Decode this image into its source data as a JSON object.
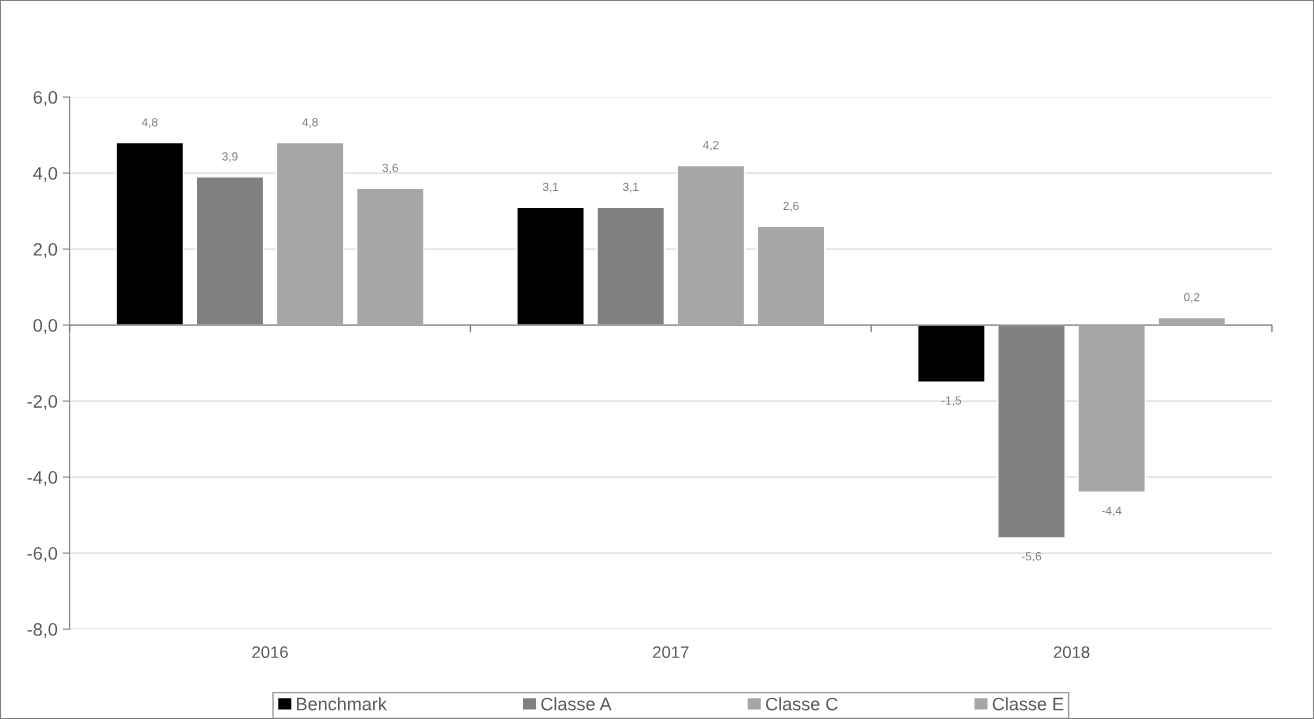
{
  "chart_data": {
    "type": "bar",
    "categories": [
      "2016",
      "2017",
      "2018"
    ],
    "series": [
      {
        "name": "Benchmark",
        "color": "#000000",
        "values": [
          4.8,
          3.1,
          -1.5
        ],
        "value_labels": [
          "4,8",
          "3,1",
          "-1,5"
        ]
      },
      {
        "name": "Classe A",
        "color": "#808080",
        "values": [
          3.9,
          3.1,
          -5.6
        ],
        "value_labels": [
          "3,9",
          "3,1",
          "-5,6"
        ]
      },
      {
        "name": "Classe C",
        "color": "#a6a6a6",
        "values": [
          4.8,
          4.2,
          -4.4
        ],
        "value_labels": [
          "4,8",
          "4,2",
          "-4,4"
        ]
      },
      {
        "name": "Classe E",
        "color": "#a6a6a6",
        "values": [
          3.6,
          2.6,
          0.2
        ],
        "value_labels": [
          "3,6",
          "2,6",
          "0,2"
        ]
      }
    ],
    "ylim": [
      -8,
      6
    ],
    "yticks": [
      {
        "value": -8,
        "label": "-8,0"
      },
      {
        "value": -6,
        "label": "-6,0"
      },
      {
        "value": -4,
        "label": "-4,0"
      },
      {
        "value": -2,
        "label": "-2,0"
      },
      {
        "value": 0,
        "label": "0,0"
      },
      {
        "value": 2,
        "label": "2,0"
      },
      {
        "value": 4,
        "label": "4,0"
      },
      {
        "value": 6,
        "label": "6,0"
      }
    ],
    "grid": "y",
    "legend": "bottom"
  }
}
